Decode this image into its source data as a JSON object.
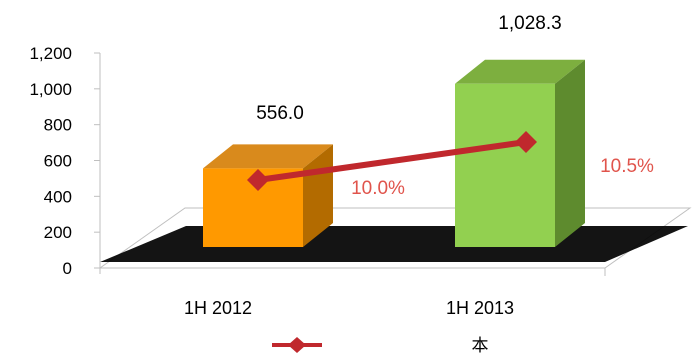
{
  "chart_data": {
    "type": "bar",
    "categories": [
      "1H 2012",
      "1H 2013"
    ],
    "series": [
      {
        "values": [
          556.0,
          1028.3
        ],
        "value_labels": [
          "556.0",
          "1,028.3"
        ],
        "colors": {
          "front": [
            "#FF9900",
            "#92D050"
          ],
          "top": [
            "#D98A1C",
            "#7DAF3F"
          ],
          "side": [
            "#B36B00",
            "#5E8B2E"
          ]
        }
      },
      {
        "kind": "line",
        "values": [
          10.0,
          10.5
        ],
        "value_labels": [
          "10.0%",
          "10.5%"
        ],
        "color": "#C0282D",
        "label_color": "#E0544C"
      }
    ],
    "ylim": [
      0,
      1200
    ],
    "yticks": [
      0,
      200,
      400,
      600,
      800,
      1000,
      1200
    ],
    "ytick_labels": [
      "0",
      "200",
      "400",
      "600",
      "800",
      "1,000",
      "1,200"
    ],
    "grid": false,
    "legend": {
      "placement": "bottom",
      "marker_color": "#C0282D",
      "text": "本"
    }
  }
}
